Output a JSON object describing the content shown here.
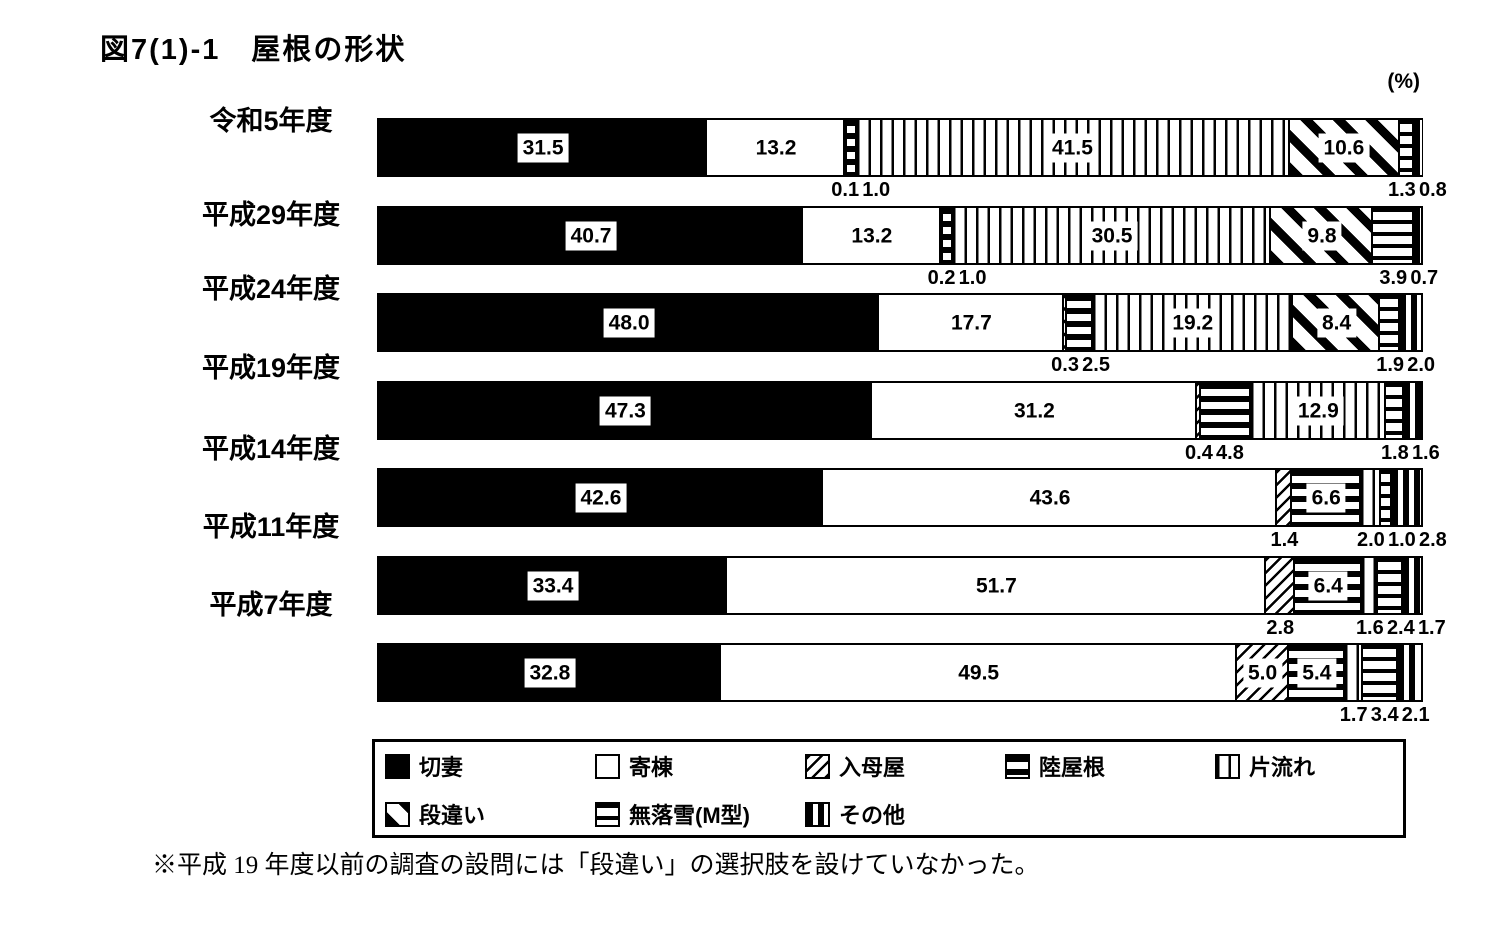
{
  "figure": {
    "title": "図7(1)-1　屋根の形状",
    "unit_label": "(%)",
    "footnote": "※平成 19 年度以前の調査の設問には「段違い」の選択肢を設けていなかった。"
  },
  "chart_data": {
    "type": "bar",
    "orientation": "horizontal",
    "stacked": true,
    "title": "図7(1)-1　屋根の形状",
    "unit": "%",
    "xlim": [
      0,
      100
    ],
    "grid": false,
    "legend_position": "bottom-box-two-rows",
    "label_threshold_inside": 5.0,
    "categories": [
      "令和5年度",
      "平成29年度",
      "平成24年度",
      "平成19年度",
      "平成14年度",
      "平成11年度",
      "平成7年度"
    ],
    "series": [
      {
        "name": "切妻",
        "pattern": "solid-black",
        "values": [
          31.5,
          40.7,
          48.0,
          47.3,
          42.6,
          33.4,
          32.8
        ]
      },
      {
        "name": "寄棟",
        "pattern": "plain-white",
        "values": [
          13.2,
          13.2,
          17.7,
          31.2,
          43.6,
          51.7,
          49.5
        ]
      },
      {
        "name": "入母屋",
        "pattern": "diagonal-hatch-fine",
        "values": [
          0.1,
          0.2,
          0.3,
          0.4,
          1.4,
          2.8,
          5.0
        ]
      },
      {
        "name": "陸屋根",
        "pattern": "horizontal-stripes-thick",
        "values": [
          1.0,
          1.0,
          2.5,
          4.8,
          6.6,
          6.4,
          5.4
        ]
      },
      {
        "name": "片流れ",
        "pattern": "vertical-lines-thin",
        "values": [
          41.5,
          30.5,
          19.2,
          12.9,
          2.0,
          1.6,
          1.7
        ]
      },
      {
        "name": "段違い",
        "pattern": "diagonal-stripes-bold",
        "values": [
          10.6,
          9.8,
          8.4,
          null,
          null,
          null,
          null
        ]
      },
      {
        "name": "無落雪(M型)",
        "pattern": "horizontal-lines-thin",
        "values": [
          1.3,
          3.9,
          1.9,
          1.8,
          1.0,
          2.4,
          3.4
        ]
      },
      {
        "name": "その他",
        "pattern": "vertical-stripes-bold",
        "values": [
          0.8,
          0.7,
          2.0,
          1.6,
          2.8,
          1.7,
          2.1
        ]
      }
    ],
    "legend_rows": [
      [
        "切妻",
        "寄棟",
        "入母屋",
        "陸屋根",
        "片流れ"
      ],
      [
        "段違い",
        "無落雪(M型)",
        "その他"
      ]
    ]
  }
}
